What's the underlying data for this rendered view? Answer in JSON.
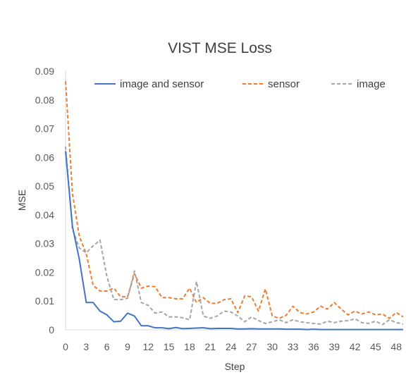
{
  "chart_data": {
    "type": "line",
    "title": "VIST MSE Loss",
    "xlabel": "Step",
    "ylabel": "MSE",
    "ylim": [
      0,
      0.09
    ],
    "xlim": [
      0,
      49
    ],
    "y_ticks": [
      "0",
      "0.01",
      "0.02",
      "0.03",
      "0.04",
      "0.05",
      "0.06",
      "0.07",
      "0.08",
      "0.09"
    ],
    "x_ticks": [
      "0",
      "3",
      "6",
      "9",
      "12",
      "15",
      "18",
      "21",
      "24",
      "27",
      "30",
      "33",
      "36",
      "39",
      "42",
      "45",
      "48"
    ],
    "grid": false,
    "legend_position": "top",
    "x": [
      0,
      1,
      2,
      3,
      4,
      5,
      6,
      7,
      8,
      9,
      10,
      11,
      12,
      13,
      14,
      15,
      16,
      17,
      18,
      19,
      20,
      21,
      22,
      23,
      24,
      25,
      26,
      27,
      28,
      29,
      30,
      31,
      32,
      33,
      34,
      35,
      36,
      37,
      38,
      39,
      40,
      41,
      42,
      43,
      44,
      45,
      46,
      47,
      48,
      49
    ],
    "series": [
      {
        "name": "image and sensor",
        "color": "#4472C4",
        "dash": "solid",
        "values": [
          0.0622,
          0.036,
          0.0245,
          0.0095,
          0.0095,
          0.0065,
          0.0052,
          0.0028,
          0.003,
          0.0058,
          0.0048,
          0.0014,
          0.0014,
          0.0007,
          0.0007,
          0.0004,
          0.0008,
          0.0004,
          0.0005,
          0.0006,
          0.0007,
          0.0004,
          0.0005,
          0.0005,
          0.0005,
          0.0003,
          0.0003,
          0.0004,
          0.0003,
          0.0003,
          0.0003,
          0.0003,
          0.0002,
          0.0002,
          0.0002,
          0.0001,
          0.0002,
          0.0001,
          0.0001,
          0.0001,
          0.0001,
          0.0001,
          0.0001,
          0.0001,
          0.0001,
          0.0001,
          0.0001,
          0.0001,
          0.0001,
          0.0001
        ]
      },
      {
        "name": "sensor",
        "color": "#ED7D31",
        "dash": "dash",
        "values": [
          0.0865,
          0.0475,
          0.0325,
          0.0265,
          0.0155,
          0.0135,
          0.0135,
          0.0145,
          0.0115,
          0.0115,
          0.0195,
          0.0145,
          0.0152,
          0.015,
          0.0112,
          0.0112,
          0.0108,
          0.0108,
          0.0145,
          0.0095,
          0.0112,
          0.0092,
          0.0092,
          0.0105,
          0.0108,
          0.006,
          0.0118,
          0.0115,
          0.0065,
          0.0142,
          0.0048,
          0.004,
          0.005,
          0.0082,
          0.006,
          0.0055,
          0.0062,
          0.0082,
          0.0072,
          0.0095,
          0.0072,
          0.0052,
          0.0065,
          0.0055,
          0.0062,
          0.0052,
          0.0055,
          0.004,
          0.006,
          0.0045
        ]
      },
      {
        "name": "image",
        "color": "#A5A5A5",
        "dash": "dash",
        "values": [
          0.0638,
          0.035,
          0.0285,
          0.0268,
          0.0292,
          0.0312,
          0.0185,
          0.0105,
          0.0105,
          0.011,
          0.0205,
          0.0095,
          0.0085,
          0.0058,
          0.0062,
          0.0045,
          0.0045,
          0.0042,
          0.0035,
          0.0168,
          0.0048,
          0.004,
          0.0048,
          0.0065,
          0.0062,
          0.0048,
          0.0028,
          0.0045,
          0.0032,
          0.0022,
          0.0028,
          0.0035,
          0.0025,
          0.0035,
          0.0028,
          0.0025,
          0.0022,
          0.002,
          0.003,
          0.0025,
          0.003,
          0.0032,
          0.0038,
          0.0025,
          0.0022,
          0.003,
          0.0018,
          0.0035,
          0.0025,
          0.002
        ]
      }
    ]
  }
}
